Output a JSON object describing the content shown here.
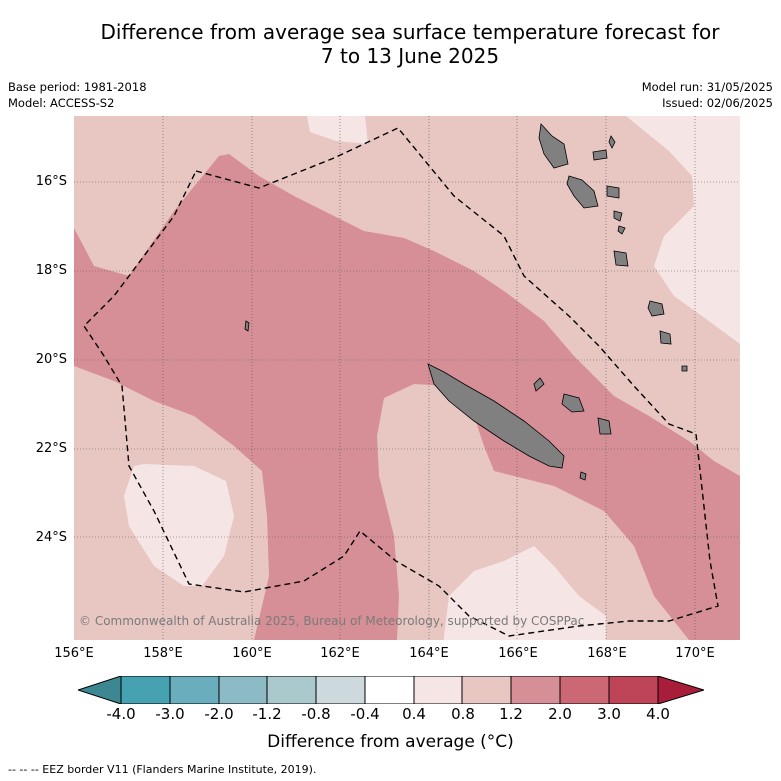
{
  "title_line1": "Difference from average sea surface temperature forecast for",
  "title_line2": "7 to 13 June 2025",
  "meta": {
    "base_period": "Base period: 1981-2018",
    "model": "Model: ACCESS-S2",
    "model_run": "Model run: 31/05/2025",
    "issued": "Issued: 02/06/2025"
  },
  "map": {
    "lat_labels": [
      "16°S",
      "18°S",
      "20°S",
      "22°S",
      "24°S"
    ],
    "lon_labels": [
      "156°E",
      "158°E",
      "160°E",
      "162°E",
      "164°E",
      "166°E",
      "168°E",
      "170°E"
    ],
    "copyright": "© Commonwealth of Australia 2025, Bureau of Meteorology, supported by COSPPac",
    "land_color": "#808080",
    "anomaly_classes": [
      {
        "range": "0.4 to 0.8",
        "color": "#f5e6e5"
      },
      {
        "range": "0.8 to 1.2",
        "color": "#e8c7c3"
      },
      {
        "range": "1.2 to 2.0",
        "color": "#d68f97"
      }
    ]
  },
  "colorbar": {
    "ticks": [
      "-4.0",
      "-3.0",
      "-2.0",
      "-1.2",
      "-0.8",
      "-0.4",
      "0.4",
      "0.8",
      "1.2",
      "2.0",
      "3.0",
      "4.0"
    ],
    "colors": [
      "#3d8792",
      "#46a1b0",
      "#6aadbc",
      "#8cbac5",
      "#a9c9cd",
      "#cdd9dc",
      "#ffffff",
      "#f5e6e5",
      "#e8c7c3",
      "#d68f97",
      "#cc6874",
      "#bd4557",
      "#a81e3a"
    ],
    "label": "Difference from average (°C)"
  },
  "legend_eez": "--  --  -- EEZ border V11 (Flanders Marine Institute, 2019)."
}
